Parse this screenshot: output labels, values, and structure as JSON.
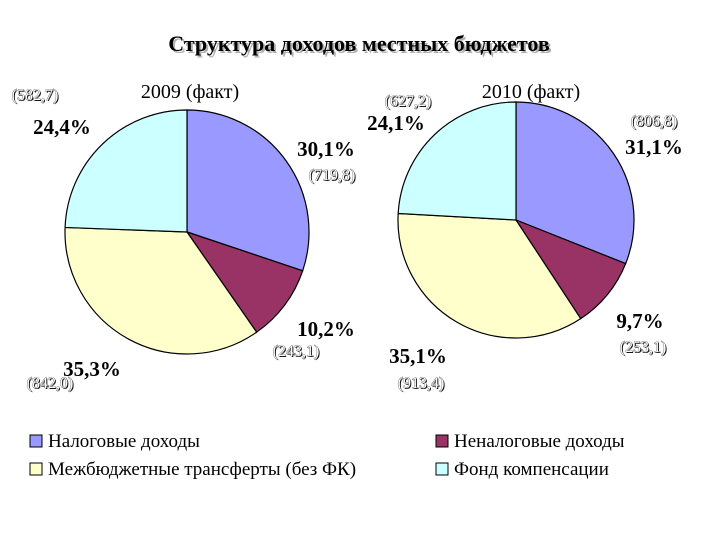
{
  "chart_data": {
    "type": "pie",
    "title": "Структура доходов местных бюджетов",
    "categories": [
      "Налоговые доходы",
      "Неналоговые доходы",
      "Межбюджетные трансферты (без ФК)",
      "Фонд компенсации"
    ],
    "colors": [
      "#9999ff",
      "#993366",
      "#ffffcc",
      "#ccffff"
    ],
    "legend_placement": "bottom",
    "pies": [
      {
        "title": "2009 (факт)",
        "values": [
          719.8,
          243.1,
          842.0,
          582.7
        ],
        "value_labels": [
          "(719,8)",
          "(243,1)",
          "(842,0)",
          "(582,7)"
        ],
        "percents": [
          "30,1%",
          "10,2%",
          "35,3%",
          "24,4%"
        ]
      },
      {
        "title": "2010 (факт)",
        "values": [
          806.8,
          253.1,
          913.4,
          627.2
        ],
        "value_labels": [
          "(806,8)",
          "(253,1)",
          "(913,4)",
          "(627,2)"
        ],
        "percents": [
          "31,1%",
          "9,7%",
          "35,1%",
          "24,1%"
        ]
      }
    ]
  }
}
